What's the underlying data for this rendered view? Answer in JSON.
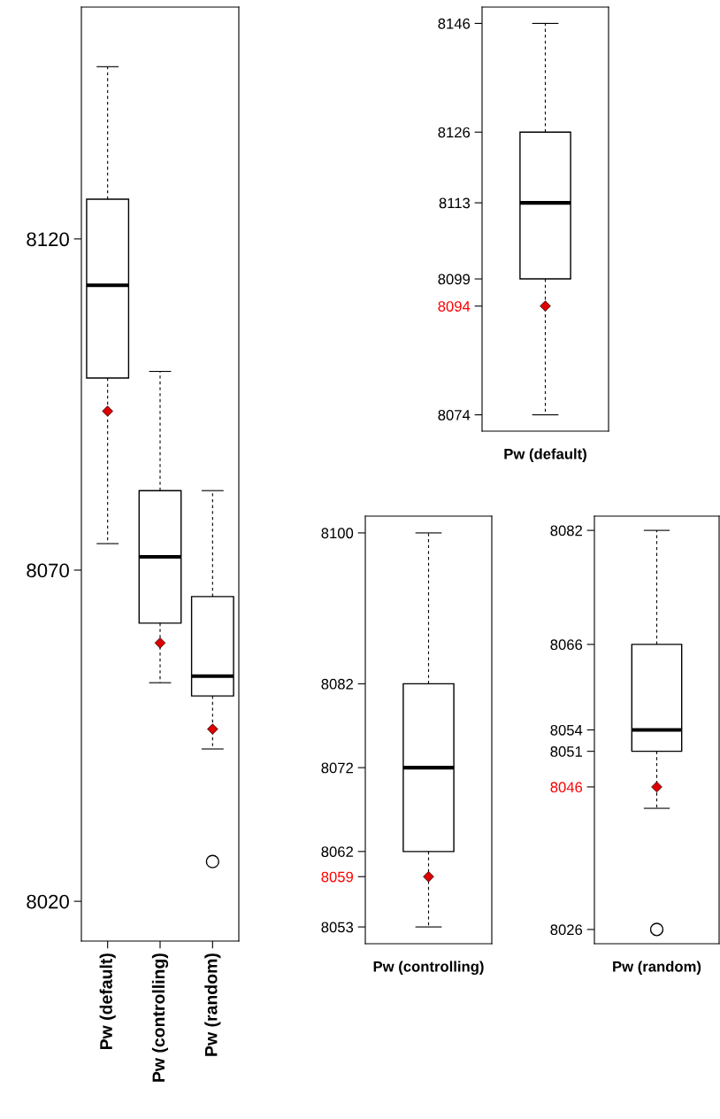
{
  "chart_data": [
    {
      "type": "box",
      "categories": [
        "Pw (default)",
        "Pw (controlling)",
        "Pw (random)"
      ],
      "ylim": [
        8014,
        8155
      ],
      "yticks": [
        8020,
        8070,
        8120
      ],
      "grid": false,
      "legend": false,
      "boxes": [
        {
          "low": 8074,
          "q1": 8099,
          "median": 8113,
          "q3": 8126,
          "high": 8146,
          "mean": 8094
        },
        {
          "low": 8053,
          "q1": 8062,
          "median": 8072,
          "q3": 8082,
          "high": 8100,
          "mean": 8059
        },
        {
          "low": 8043,
          "q1": 8051,
          "median": 8054,
          "q3": 8066,
          "high": 8082,
          "mean": 8046,
          "outliers": [
            8026
          ]
        }
      ]
    },
    {
      "type": "box",
      "categories": [
        "Pw (default)"
      ],
      "ylim": [
        8071,
        8149
      ],
      "yticks": [
        8074,
        8094,
        8099,
        8113,
        8126,
        8146
      ],
      "grid": false,
      "legend": false,
      "boxes": [
        {
          "low": 8074,
          "q1": 8099,
          "median": 8113,
          "q3": 8126,
          "high": 8146,
          "mean": 8094
        }
      ]
    },
    {
      "type": "box",
      "categories": [
        "Pw (controlling)"
      ],
      "ylim": [
        8051,
        8102
      ],
      "yticks": [
        8053,
        8059,
        8062,
        8072,
        8082,
        8100
      ],
      "grid": false,
      "legend": false,
      "boxes": [
        {
          "low": 8053,
          "q1": 8062,
          "median": 8072,
          "q3": 8082,
          "high": 8100,
          "mean": 8059
        }
      ]
    },
    {
      "type": "box",
      "categories": [
        "Pw (random)"
      ],
      "ylim": [
        8024,
        8084
      ],
      "yticks": [
        8026,
        8046,
        8051,
        8054,
        8066,
        8082
      ],
      "grid": false,
      "legend": false,
      "boxes": [
        {
          "low": 8043,
          "q1": 8051,
          "median": 8054,
          "q3": 8066,
          "high": 8082,
          "mean": 8046,
          "outliers": [
            8026
          ]
        }
      ]
    }
  ]
}
